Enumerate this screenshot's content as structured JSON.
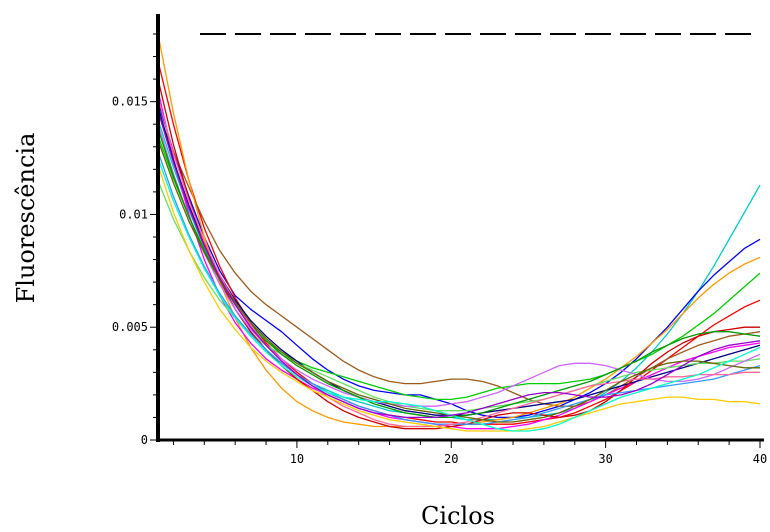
{
  "chart_data": {
    "type": "line",
    "title": "",
    "xlabel": "Ciclos",
    "ylabel": "Fluorescência",
    "xlim": [
      1,
      40
    ],
    "ylim": [
      0,
      0.018
    ],
    "xticks": [
      10,
      20,
      30,
      40
    ],
    "xtick_labels": [
      "10",
      "20",
      "30",
      "40"
    ],
    "yticks": [
      0,
      0.005,
      0.01,
      0.015
    ],
    "ytick_labels": [
      "0",
      "0.005",
      "0.01",
      "0.015"
    ],
    "grid": false,
    "legend": "none",
    "threshold": {
      "y": 0.018,
      "style": "dashed",
      "color": "#000000"
    },
    "x": [
      1,
      2,
      3,
      4,
      5,
      6,
      7,
      8,
      9,
      10,
      11,
      12,
      13,
      14,
      15,
      16,
      17,
      18,
      19,
      20,
      21,
      22,
      23,
      24,
      25,
      26,
      27,
      28,
      29,
      30,
      31,
      32,
      33,
      34,
      35,
      36,
      37,
      38,
      39,
      40
    ],
    "series": [
      {
        "color": "#00c8c8",
        "values": [
          0.0142,
          0.0121,
          0.0102,
          0.0085,
          0.0071,
          0.0058,
          0.0048,
          0.004,
          0.0034,
          0.0029,
          0.0025,
          0.0022,
          0.0019,
          0.0017,
          0.0015,
          0.0013,
          0.0012,
          0.0011,
          0.001,
          0.001,
          0.0009,
          0.0009,
          0.0009,
          0.001,
          0.001,
          0.0011,
          0.0012,
          0.0014,
          0.0017,
          0.0021,
          0.0026,
          0.0032,
          0.0039,
          0.0047,
          0.0056,
          0.0066,
          0.0077,
          0.0089,
          0.0101,
          0.0113
        ]
      },
      {
        "color": "#0000ff",
        "values": [
          0.015,
          0.0128,
          0.0108,
          0.009,
          0.0075,
          0.0064,
          0.0058,
          0.0053,
          0.0048,
          0.0042,
          0.0036,
          0.0031,
          0.0027,
          0.0024,
          0.0022,
          0.0021,
          0.002,
          0.002,
          0.0018,
          0.0016,
          0.0013,
          0.0011,
          0.001,
          0.001,
          0.0011,
          0.0013,
          0.0015,
          0.0018,
          0.0021,
          0.0025,
          0.003,
          0.0036,
          0.0043,
          0.005,
          0.0058,
          0.0066,
          0.0073,
          0.0079,
          0.0085,
          0.0089
        ]
      },
      {
        "color": "#ff0000",
        "values": [
          0.0168,
          0.014,
          0.0115,
          0.0094,
          0.0077,
          0.0063,
          0.0052,
          0.0043,
          0.0036,
          0.003,
          0.0025,
          0.0021,
          0.0018,
          0.0015,
          0.0013,
          0.0011,
          0.001,
          0.0009,
          0.0008,
          0.0008,
          0.0007,
          0.0007,
          0.0007,
          0.0007,
          0.0008,
          0.0009,
          0.001,
          0.0012,
          0.0015,
          0.0018,
          0.0022,
          0.0026,
          0.0031,
          0.0036,
          0.0041,
          0.0046,
          0.0051,
          0.0055,
          0.0059,
          0.0062
        ]
      },
      {
        "color": "#9b5a1e",
        "values": [
          0.0145,
          0.0128,
          0.0112,
          0.0097,
          0.0084,
          0.0074,
          0.0066,
          0.006,
          0.0055,
          0.005,
          0.0045,
          0.004,
          0.0035,
          0.0031,
          0.0028,
          0.0026,
          0.0025,
          0.0025,
          0.0026,
          0.0027,
          0.0027,
          0.0026,
          0.0024,
          0.0021,
          0.0018,
          0.0016,
          0.0015,
          0.0015,
          0.0017,
          0.002,
          0.0024,
          0.0028,
          0.0032,
          0.0036,
          0.0039,
          0.0042,
          0.0044,
          0.0046,
          0.0047,
          0.0048
        ]
      },
      {
        "color": "#ff9900",
        "values": [
          0.018,
          0.0145,
          0.0115,
          0.009,
          0.007,
          0.0054,
          0.0041,
          0.0031,
          0.0023,
          0.0017,
          0.0013,
          0.001,
          0.0008,
          0.0007,
          0.0006,
          0.0006,
          0.0006,
          0.0006,
          0.0006,
          0.0007,
          0.0007,
          0.0008,
          0.0009,
          0.001,
          0.0012,
          0.0014,
          0.0016,
          0.0019,
          0.0023,
          0.0027,
          0.0032,
          0.0037,
          0.0043,
          0.0049,
          0.0056,
          0.0063,
          0.0069,
          0.0074,
          0.0078,
          0.0081
        ]
      },
      {
        "color": "#00cc00",
        "values": [
          0.0135,
          0.0116,
          0.0099,
          0.0084,
          0.0071,
          0.006,
          0.0051,
          0.0044,
          0.0039,
          0.0035,
          0.0032,
          0.003,
          0.0028,
          0.0026,
          0.0024,
          0.0022,
          0.002,
          0.0019,
          0.0018,
          0.0018,
          0.0019,
          0.0021,
          0.0023,
          0.0024,
          0.0025,
          0.0025,
          0.0025,
          0.0026,
          0.0027,
          0.0029,
          0.0032,
          0.0035,
          0.0038,
          0.0042,
          0.0046,
          0.0051,
          0.0056,
          0.0062,
          0.0068,
          0.0074
        ]
      },
      {
        "color": "#ff00ff",
        "values": [
          0.0155,
          0.0125,
          0.01,
          0.008,
          0.0064,
          0.0052,
          0.0043,
          0.0036,
          0.0031,
          0.0027,
          0.0023,
          0.002,
          0.0017,
          0.0014,
          0.0012,
          0.001,
          0.0009,
          0.0008,
          0.0007,
          0.0006,
          0.0005,
          0.0005,
          0.0005,
          0.0006,
          0.0007,
          0.0009,
          0.0011,
          0.0014,
          0.0017,
          0.002,
          0.0023,
          0.0026,
          0.0029,
          0.0032,
          0.0035,
          0.0037,
          0.0039,
          0.0041,
          0.0042,
          0.0043
        ]
      },
      {
        "color": "#000080",
        "values": [
          0.0148,
          0.0124,
          0.0104,
          0.0087,
          0.0073,
          0.0062,
          0.0053,
          0.0046,
          0.004,
          0.0035,
          0.003,
          0.0026,
          0.0022,
          0.0019,
          0.0017,
          0.0015,
          0.0013,
          0.0012,
          0.0011,
          0.0011,
          0.0011,
          0.0012,
          0.0013,
          0.0014,
          0.0015,
          0.0016,
          0.0017,
          0.0018,
          0.002,
          0.0022,
          0.0024,
          0.0026,
          0.0028,
          0.003,
          0.0032,
          0.0034,
          0.0036,
          0.0038,
          0.004,
          0.0042
        ]
      },
      {
        "color": "#66dd66",
        "values": [
          0.0115,
          0.0098,
          0.0084,
          0.0072,
          0.0062,
          0.0054,
          0.0047,
          0.0042,
          0.0038,
          0.0034,
          0.0031,
          0.0028,
          0.0025,
          0.0022,
          0.0019,
          0.0017,
          0.0015,
          0.0014,
          0.0013,
          0.0013,
          0.0013,
          0.0014,
          0.0015,
          0.0016,
          0.0017,
          0.0018,
          0.002,
          0.0022,
          0.0024,
          0.0026,
          0.0028,
          0.003,
          0.0031,
          0.0032,
          0.0033,
          0.0034,
          0.0034,
          0.0035,
          0.0035,
          0.0036
        ]
      },
      {
        "color": "#cc0000",
        "values": [
          0.016,
          0.0131,
          0.0107,
          0.0087,
          0.0071,
          0.0058,
          0.0048,
          0.004,
          0.0033,
          0.0027,
          0.0022,
          0.0017,
          0.0013,
          0.001,
          0.0008,
          0.0006,
          0.0005,
          0.0005,
          0.0005,
          0.0006,
          0.0007,
          0.0009,
          0.0011,
          0.0012,
          0.0012,
          0.0011,
          0.001,
          0.0011,
          0.0013,
          0.0017,
          0.0022,
          0.0028,
          0.0034,
          0.0039,
          0.0043,
          0.0046,
          0.0048,
          0.0049,
          0.005,
          0.005
        ]
      },
      {
        "color": "#3399ff",
        "values": [
          0.0128,
          0.0108,
          0.0091,
          0.0077,
          0.0065,
          0.0055,
          0.0047,
          0.004,
          0.0034,
          0.0029,
          0.0025,
          0.0021,
          0.0018,
          0.0015,
          0.0013,
          0.0011,
          0.0009,
          0.0008,
          0.0007,
          0.0007,
          0.0007,
          0.0007,
          0.0008,
          0.0009,
          0.001,
          0.0012,
          0.0014,
          0.0016,
          0.0018,
          0.002,
          0.0021,
          0.0022,
          0.0023,
          0.0024,
          0.0025,
          0.0026,
          0.0027,
          0.0029,
          0.0031,
          0.0033
        ]
      },
      {
        "color": "#cc66ff",
        "values": [
          0.014,
          0.0118,
          0.0099,
          0.0083,
          0.0069,
          0.0058,
          0.0049,
          0.0042,
          0.0036,
          0.0031,
          0.0027,
          0.0024,
          0.0021,
          0.0019,
          0.0017,
          0.0016,
          0.0015,
          0.0015,
          0.0015,
          0.0016,
          0.0017,
          0.0019,
          0.0021,
          0.0024,
          0.0027,
          0.003,
          0.0033,
          0.0034,
          0.0034,
          0.0033,
          0.0031,
          0.0029,
          0.0027,
          0.0026,
          0.0026,
          0.0027,
          0.0029,
          0.0032,
          0.0035,
          0.0038
        ]
      },
      {
        "color": "#009900",
        "values": [
          0.0138,
          0.0117,
          0.0099,
          0.0084,
          0.0071,
          0.006,
          0.0051,
          0.0044,
          0.0038,
          0.0033,
          0.0029,
          0.0025,
          0.0022,
          0.0019,
          0.0016,
          0.0014,
          0.0012,
          0.0011,
          0.001,
          0.001,
          0.0011,
          0.0012,
          0.0014,
          0.0016,
          0.0018,
          0.002,
          0.0022,
          0.0024,
          0.0026,
          0.0029,
          0.0032,
          0.0035,
          0.0039,
          0.0042,
          0.0045,
          0.0047,
          0.0048,
          0.0048,
          0.0047,
          0.0046
        ]
      },
      {
        "color": "#ff6699",
        "values": [
          0.0152,
          0.0127,
          0.0106,
          0.0088,
          0.0073,
          0.0061,
          0.0051,
          0.0042,
          0.0035,
          0.0029,
          0.0024,
          0.0019,
          0.0015,
          0.0012,
          0.0009,
          0.0007,
          0.0006,
          0.0006,
          0.0006,
          0.0007,
          0.0008,
          0.001,
          0.0012,
          0.0014,
          0.0016,
          0.0018,
          0.002,
          0.0022,
          0.0024,
          0.0025,
          0.0026,
          0.0027,
          0.0027,
          0.0028,
          0.0028,
          0.0029,
          0.0029,
          0.0029,
          0.003,
          0.003
        ]
      },
      {
        "color": "#666600",
        "values": [
          0.0133,
          0.0114,
          0.0097,
          0.0083,
          0.0071,
          0.0061,
          0.0052,
          0.0045,
          0.0039,
          0.0034,
          0.003,
          0.0026,
          0.0023,
          0.002,
          0.0018,
          0.0016,
          0.0014,
          0.0013,
          0.0012,
          0.0011,
          0.001,
          0.0009,
          0.0008,
          0.0008,
          0.0009,
          0.001,
          0.0012,
          0.0015,
          0.0018,
          0.0022,
          0.0026,
          0.0029,
          0.0032,
          0.0034,
          0.0035,
          0.0035,
          0.0034,
          0.0033,
          0.0032,
          0.0032
        ]
      },
      {
        "color": "#ffcc00",
        "values": [
          0.0122,
          0.0101,
          0.0084,
          0.007,
          0.0058,
          0.0049,
          0.0041,
          0.0035,
          0.003,
          0.0026,
          0.0022,
          0.0019,
          0.0016,
          0.0013,
          0.0011,
          0.0009,
          0.0008,
          0.0007,
          0.0006,
          0.0005,
          0.0004,
          0.0004,
          0.0004,
          0.0004,
          0.0005,
          0.0006,
          0.0008,
          0.001,
          0.0012,
          0.0014,
          0.0016,
          0.0017,
          0.0018,
          0.0019,
          0.0019,
          0.0018,
          0.0018,
          0.0017,
          0.0017,
          0.0016
        ]
      },
      {
        "color": "#00ffcc",
        "values": [
          0.0125,
          0.0106,
          0.009,
          0.0076,
          0.0064,
          0.0054,
          0.0046,
          0.0039,
          0.0033,
          0.0028,
          0.0024,
          0.0021,
          0.0019,
          0.0018,
          0.0017,
          0.0017,
          0.0016,
          0.0015,
          0.0013,
          0.0011,
          0.0009,
          0.0007,
          0.0005,
          0.0004,
          0.0004,
          0.0005,
          0.0007,
          0.001,
          0.0013,
          0.0016,
          0.0019,
          0.0021,
          0.0023,
          0.0025,
          0.0027,
          0.0029,
          0.0032,
          0.0035,
          0.0038,
          0.0041
        ]
      },
      {
        "color": "#9900cc",
        "values": [
          0.0146,
          0.0123,
          0.0103,
          0.0086,
          0.0072,
          0.006,
          0.005,
          0.0042,
          0.0035,
          0.0029,
          0.0024,
          0.002,
          0.0017,
          0.0014,
          0.0012,
          0.0011,
          0.001,
          0.001,
          0.001,
          0.0011,
          0.0012,
          0.0014,
          0.0016,
          0.0018,
          0.002,
          0.0021,
          0.0021,
          0.002,
          0.0019,
          0.0019,
          0.002,
          0.0022,
          0.0025,
          0.0029,
          0.0033,
          0.0037,
          0.004,
          0.0042,
          0.0043,
          0.0044
        ]
      }
    ]
  }
}
